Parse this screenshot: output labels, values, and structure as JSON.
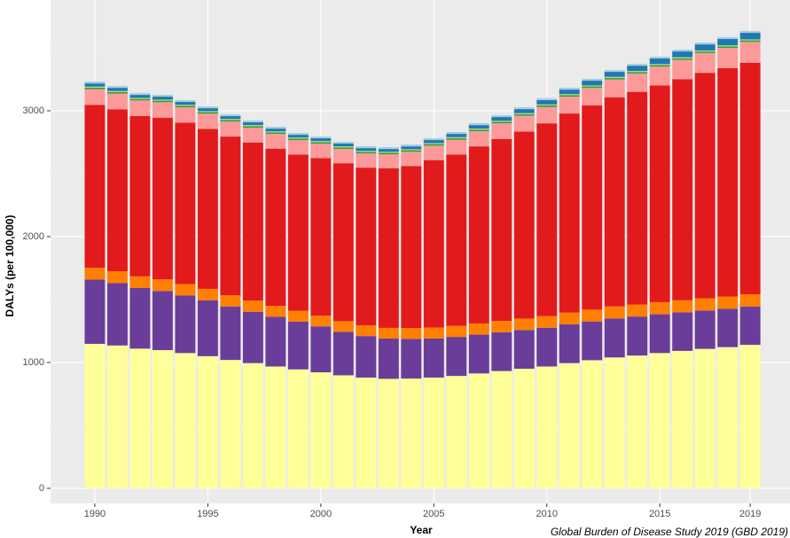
{
  "chart_data": {
    "type": "stacked_bar",
    "y_label": "DALYs (per 100,000)",
    "x_label": "Year",
    "caption": "Global Burden of Disease Study 2019 (GBD 2019)",
    "x": [
      1990,
      1991,
      1992,
      1993,
      1994,
      1995,
      1996,
      1997,
      1998,
      1999,
      2000,
      2001,
      2002,
      2003,
      2004,
      2005,
      2006,
      2007,
      2008,
      2009,
      2010,
      2011,
      2012,
      2013,
      2014,
      2015,
      2016,
      2017,
      2018,
      2019
    ],
    "xlim": [
      1988.04,
      2020.76
    ],
    "xticks": [
      1990,
      1995,
      2000,
      2005,
      2010,
      2015,
      2019
    ],
    "ylim": [
      -120,
      3880
    ],
    "yticks": [
      0,
      1000,
      2000,
      3000
    ],
    "grid": true,
    "series": [
      {
        "color": "#ffff99",
        "values": [
          1148,
          1135,
          1110,
          1098,
          1075,
          1050,
          1020,
          995,
          968,
          945,
          922,
          898,
          880,
          870,
          872,
          880,
          893,
          913,
          932,
          950,
          968,
          995,
          1018,
          1040,
          1055,
          1075,
          1092,
          1108,
          1122,
          1140
        ]
      },
      {
        "color": "#6a3d9a",
        "values": [
          510,
          495,
          482,
          470,
          458,
          445,
          425,
          408,
          395,
          380,
          365,
          345,
          330,
          320,
          315,
          310,
          310,
          308,
          308,
          308,
          308,
          308,
          308,
          310,
          310,
          308,
          306,
          305,
          304,
          304
        ]
      },
      {
        "color": "#ff7f00",
        "values": [
          95,
          95,
          92,
          92,
          90,
          90,
          88,
          88,
          87,
          86,
          85,
          85,
          85,
          85,
          86,
          87,
          88,
          89,
          90,
          91,
          92,
          93,
          94,
          95,
          95,
          96,
          96,
          97,
          97,
          98
        ]
      },
      {
        "color": "#e31a1c",
        "values": [
          1294,
          1287,
          1274,
          1285,
          1282,
          1271,
          1262,
          1257,
          1249,
          1240,
          1252,
          1255,
          1253,
          1267,
          1288,
          1331,
          1361,
          1407,
          1446,
          1485,
          1532,
          1582,
          1623,
          1662,
          1690,
          1722,
          1757,
          1791,
          1815,
          1840
        ]
      },
      {
        "color": "#fb9a99",
        "values": [
          125,
          125,
          124,
          123,
          122,
          121,
          120,
          118,
          117,
          116,
          115,
          114,
          113,
          112,
          113,
          115,
          118,
          121,
          124,
          127,
          130,
          134,
          138,
          142,
          146,
          150,
          154,
          158,
          162,
          165
        ]
      },
      {
        "color": "#33a02c",
        "values": [
          12,
          12,
          12,
          12,
          12,
          12,
          12,
          12,
          12,
          12,
          12,
          12,
          12,
          12,
          12,
          12,
          12,
          12,
          12,
          12,
          12,
          12,
          12,
          12,
          12,
          12,
          12,
          12,
          12,
          12
        ]
      },
      {
        "color": "#b2df8a",
        "values": [
          8,
          8,
          8,
          8,
          8,
          8,
          8,
          8,
          8,
          8,
          8,
          8,
          8,
          8,
          8,
          8,
          8,
          8,
          8,
          8,
          8,
          8,
          8,
          8,
          8,
          8,
          8,
          8,
          8,
          8
        ]
      },
      {
        "color": "#1f78b4",
        "values": [
          25,
          25,
          24,
          24,
          23,
          23,
          22,
          22,
          22,
          22,
          22,
          22,
          22,
          22,
          23,
          24,
          26,
          28,
          30,
          32,
          34,
          36,
          38,
          40,
          42,
          44,
          46,
          48,
          50,
          52
        ]
      },
      {
        "color": "#a6cee3",
        "values": [
          15,
          15,
          15,
          15,
          15,
          15,
          15,
          15,
          15,
          15,
          15,
          15,
          15,
          15,
          15,
          15,
          15,
          15,
          15,
          15,
          15,
          15,
          15,
          15,
          15,
          15,
          15,
          15,
          15,
          15
        ]
      }
    ]
  }
}
